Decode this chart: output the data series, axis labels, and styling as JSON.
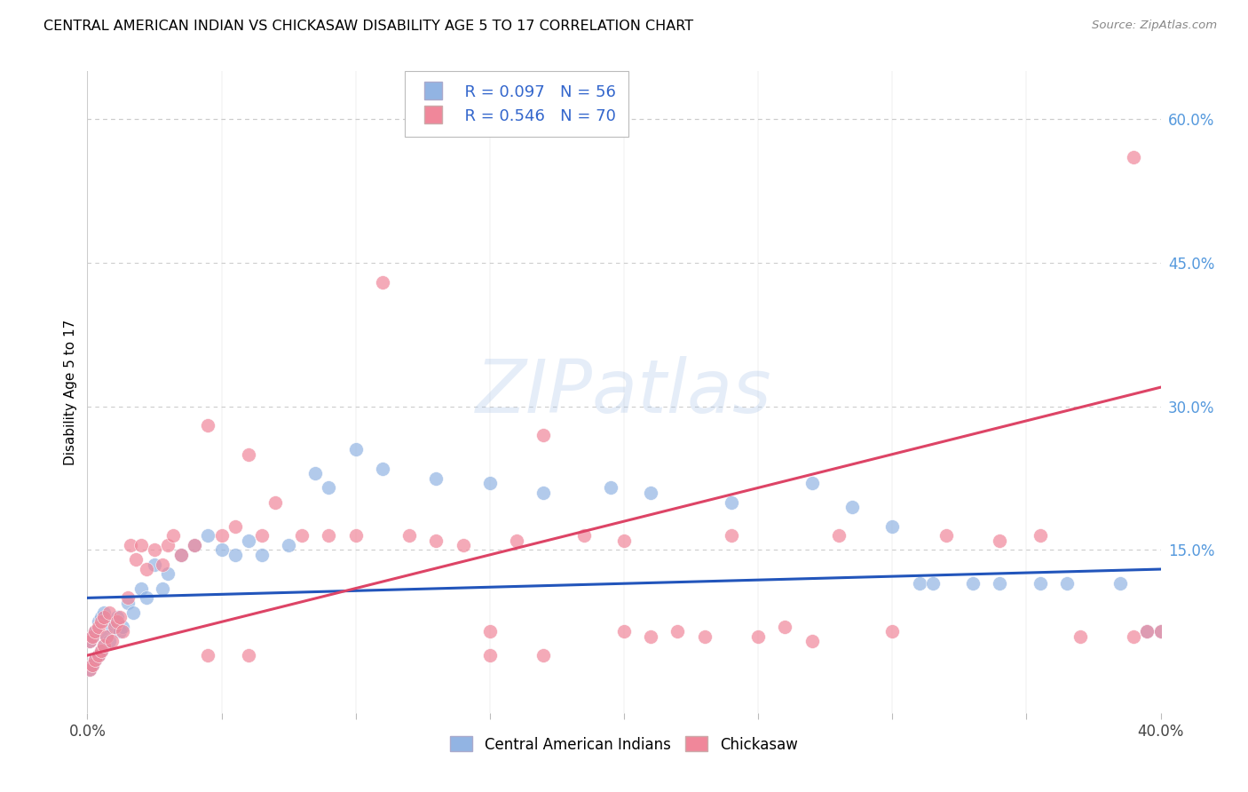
{
  "title": "CENTRAL AMERICAN INDIAN VS CHICKASAW DISABILITY AGE 5 TO 17 CORRELATION CHART",
  "source": "Source: ZipAtlas.com",
  "ylabel": "Disability Age 5 to 17",
  "xmin": 0.0,
  "xmax": 0.4,
  "ymin": -0.02,
  "ymax": 0.65,
  "grid_color": "#cccccc",
  "background_color": "#ffffff",
  "watermark_text": "ZIPatlas",
  "blue_label": "Central American Indians",
  "pink_label": "Chickasaw",
  "blue_R": "R = 0.097",
  "blue_N": "N = 56",
  "pink_R": "R = 0.546",
  "pink_N": "N = 70",
  "blue_color": "#92b4e3",
  "pink_color": "#f0879a",
  "blue_line_color": "#2255bb",
  "pink_line_color": "#dd4466",
  "blue_line_x": [
    0.0,
    0.4
  ],
  "blue_line_y": [
    0.1,
    0.13
  ],
  "pink_line_x": [
    0.0,
    0.4
  ],
  "pink_line_y": [
    0.04,
    0.32
  ],
  "blue_x": [
    0.001,
    0.001,
    0.002,
    0.002,
    0.003,
    0.003,
    0.004,
    0.004,
    0.005,
    0.005,
    0.006,
    0.006,
    0.007,
    0.008,
    0.009,
    0.01,
    0.011,
    0.012,
    0.013,
    0.015,
    0.017,
    0.02,
    0.022,
    0.025,
    0.028,
    0.03,
    0.035,
    0.04,
    0.045,
    0.05,
    0.055,
    0.06,
    0.065,
    0.075,
    0.085,
    0.09,
    0.1,
    0.11,
    0.13,
    0.15,
    0.17,
    0.195,
    0.21,
    0.24,
    0.27,
    0.31,
    0.34,
    0.365,
    0.385,
    0.395,
    0.285,
    0.3,
    0.315,
    0.33,
    0.355,
    0.4
  ],
  "blue_y": [
    0.025,
    0.055,
    0.03,
    0.06,
    0.035,
    0.065,
    0.04,
    0.075,
    0.045,
    0.08,
    0.05,
    0.085,
    0.06,
    0.055,
    0.07,
    0.075,
    0.08,
    0.065,
    0.07,
    0.095,
    0.085,
    0.11,
    0.1,
    0.135,
    0.11,
    0.125,
    0.145,
    0.155,
    0.165,
    0.15,
    0.145,
    0.16,
    0.145,
    0.155,
    0.23,
    0.215,
    0.255,
    0.235,
    0.225,
    0.22,
    0.21,
    0.215,
    0.21,
    0.2,
    0.22,
    0.115,
    0.115,
    0.115,
    0.115,
    0.065,
    0.195,
    0.175,
    0.115,
    0.115,
    0.115,
    0.065
  ],
  "pink_x": [
    0.001,
    0.001,
    0.002,
    0.002,
    0.003,
    0.003,
    0.004,
    0.004,
    0.005,
    0.005,
    0.006,
    0.006,
    0.007,
    0.008,
    0.009,
    0.01,
    0.011,
    0.012,
    0.013,
    0.015,
    0.016,
    0.018,
    0.02,
    0.022,
    0.025,
    0.028,
    0.03,
    0.032,
    0.035,
    0.04,
    0.045,
    0.05,
    0.055,
    0.06,
    0.065,
    0.07,
    0.08,
    0.09,
    0.1,
    0.11,
    0.12,
    0.13,
    0.14,
    0.15,
    0.16,
    0.17,
    0.185,
    0.2,
    0.22,
    0.24,
    0.26,
    0.28,
    0.3,
    0.32,
    0.34,
    0.355,
    0.37,
    0.39,
    0.395,
    0.4,
    0.045,
    0.06,
    0.15,
    0.17,
    0.2,
    0.21,
    0.23,
    0.25,
    0.27,
    0.39
  ],
  "pink_y": [
    0.025,
    0.055,
    0.03,
    0.06,
    0.035,
    0.065,
    0.04,
    0.07,
    0.045,
    0.075,
    0.05,
    0.08,
    0.06,
    0.085,
    0.055,
    0.07,
    0.075,
    0.08,
    0.065,
    0.1,
    0.155,
    0.14,
    0.155,
    0.13,
    0.15,
    0.135,
    0.155,
    0.165,
    0.145,
    0.155,
    0.28,
    0.165,
    0.175,
    0.25,
    0.165,
    0.2,
    0.165,
    0.165,
    0.165,
    0.43,
    0.165,
    0.16,
    0.155,
    0.065,
    0.16,
    0.27,
    0.165,
    0.16,
    0.065,
    0.165,
    0.07,
    0.165,
    0.065,
    0.165,
    0.16,
    0.165,
    0.06,
    0.06,
    0.065,
    0.065,
    0.04,
    0.04,
    0.04,
    0.04,
    0.065,
    0.06,
    0.06,
    0.06,
    0.055,
    0.56
  ]
}
